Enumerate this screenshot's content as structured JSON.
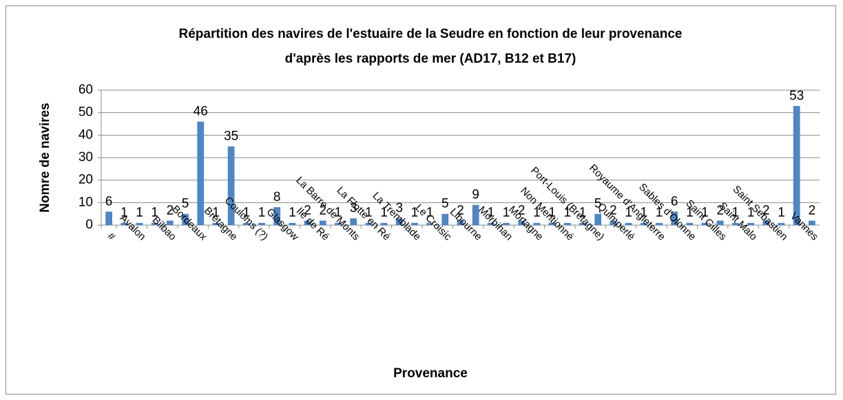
{
  "chart_data": {
    "type": "bar",
    "title": [
      "Répartition des navires de l'estuaire de la Seudre en fonction de leur provenance",
      "d'après les rapports de mer (AD17, B12 et B17)"
    ],
    "x_label": "Provenance",
    "y_label": "Nomre de navires",
    "categories": [
      "#",
      null,
      "Avalon",
      null,
      "Bilbao",
      null,
      "Bordeaux",
      null,
      "Bretagne",
      null,
      "Couloms (?)",
      null,
      "Glasgow",
      null,
      "Ile de Ré",
      null,
      "La Barre de Monts",
      null,
      "La Flotte en Ré",
      null,
      "La Tremblade",
      null,
      "Le Croisic",
      null,
      "Libourne",
      null,
      "Morbihan",
      null,
      "Mortagne",
      null,
      "Non Mentionné",
      null,
      "Port-Louis (Bretagne)",
      null,
      "Quimperlé",
      null,
      "Royaume d'Angleterre",
      null,
      "Sables d'Olonne",
      null,
      "Saint Gilles",
      null,
      "Saint Malo",
      null,
      "Saint Sebastien",
      null,
      "Vannes"
    ],
    "values": [
      6,
      1,
      1,
      1,
      2,
      5,
      46,
      1,
      35,
      1,
      1,
      8,
      1,
      2,
      2,
      1,
      3,
      1,
      1,
      3,
      1,
      1,
      5,
      2,
      9,
      1,
      1,
      2,
      1,
      1,
      1,
      1,
      5,
      2,
      1,
      1,
      1,
      6,
      1,
      1,
      2,
      1,
      1,
      2,
      1,
      53,
      2
    ],
    "color": "#4f86c6",
    "ylim": [
      0,
      60
    ],
    "yticks": [
      0,
      10,
      20,
      30,
      40,
      50,
      60
    ],
    "grid": true
  }
}
